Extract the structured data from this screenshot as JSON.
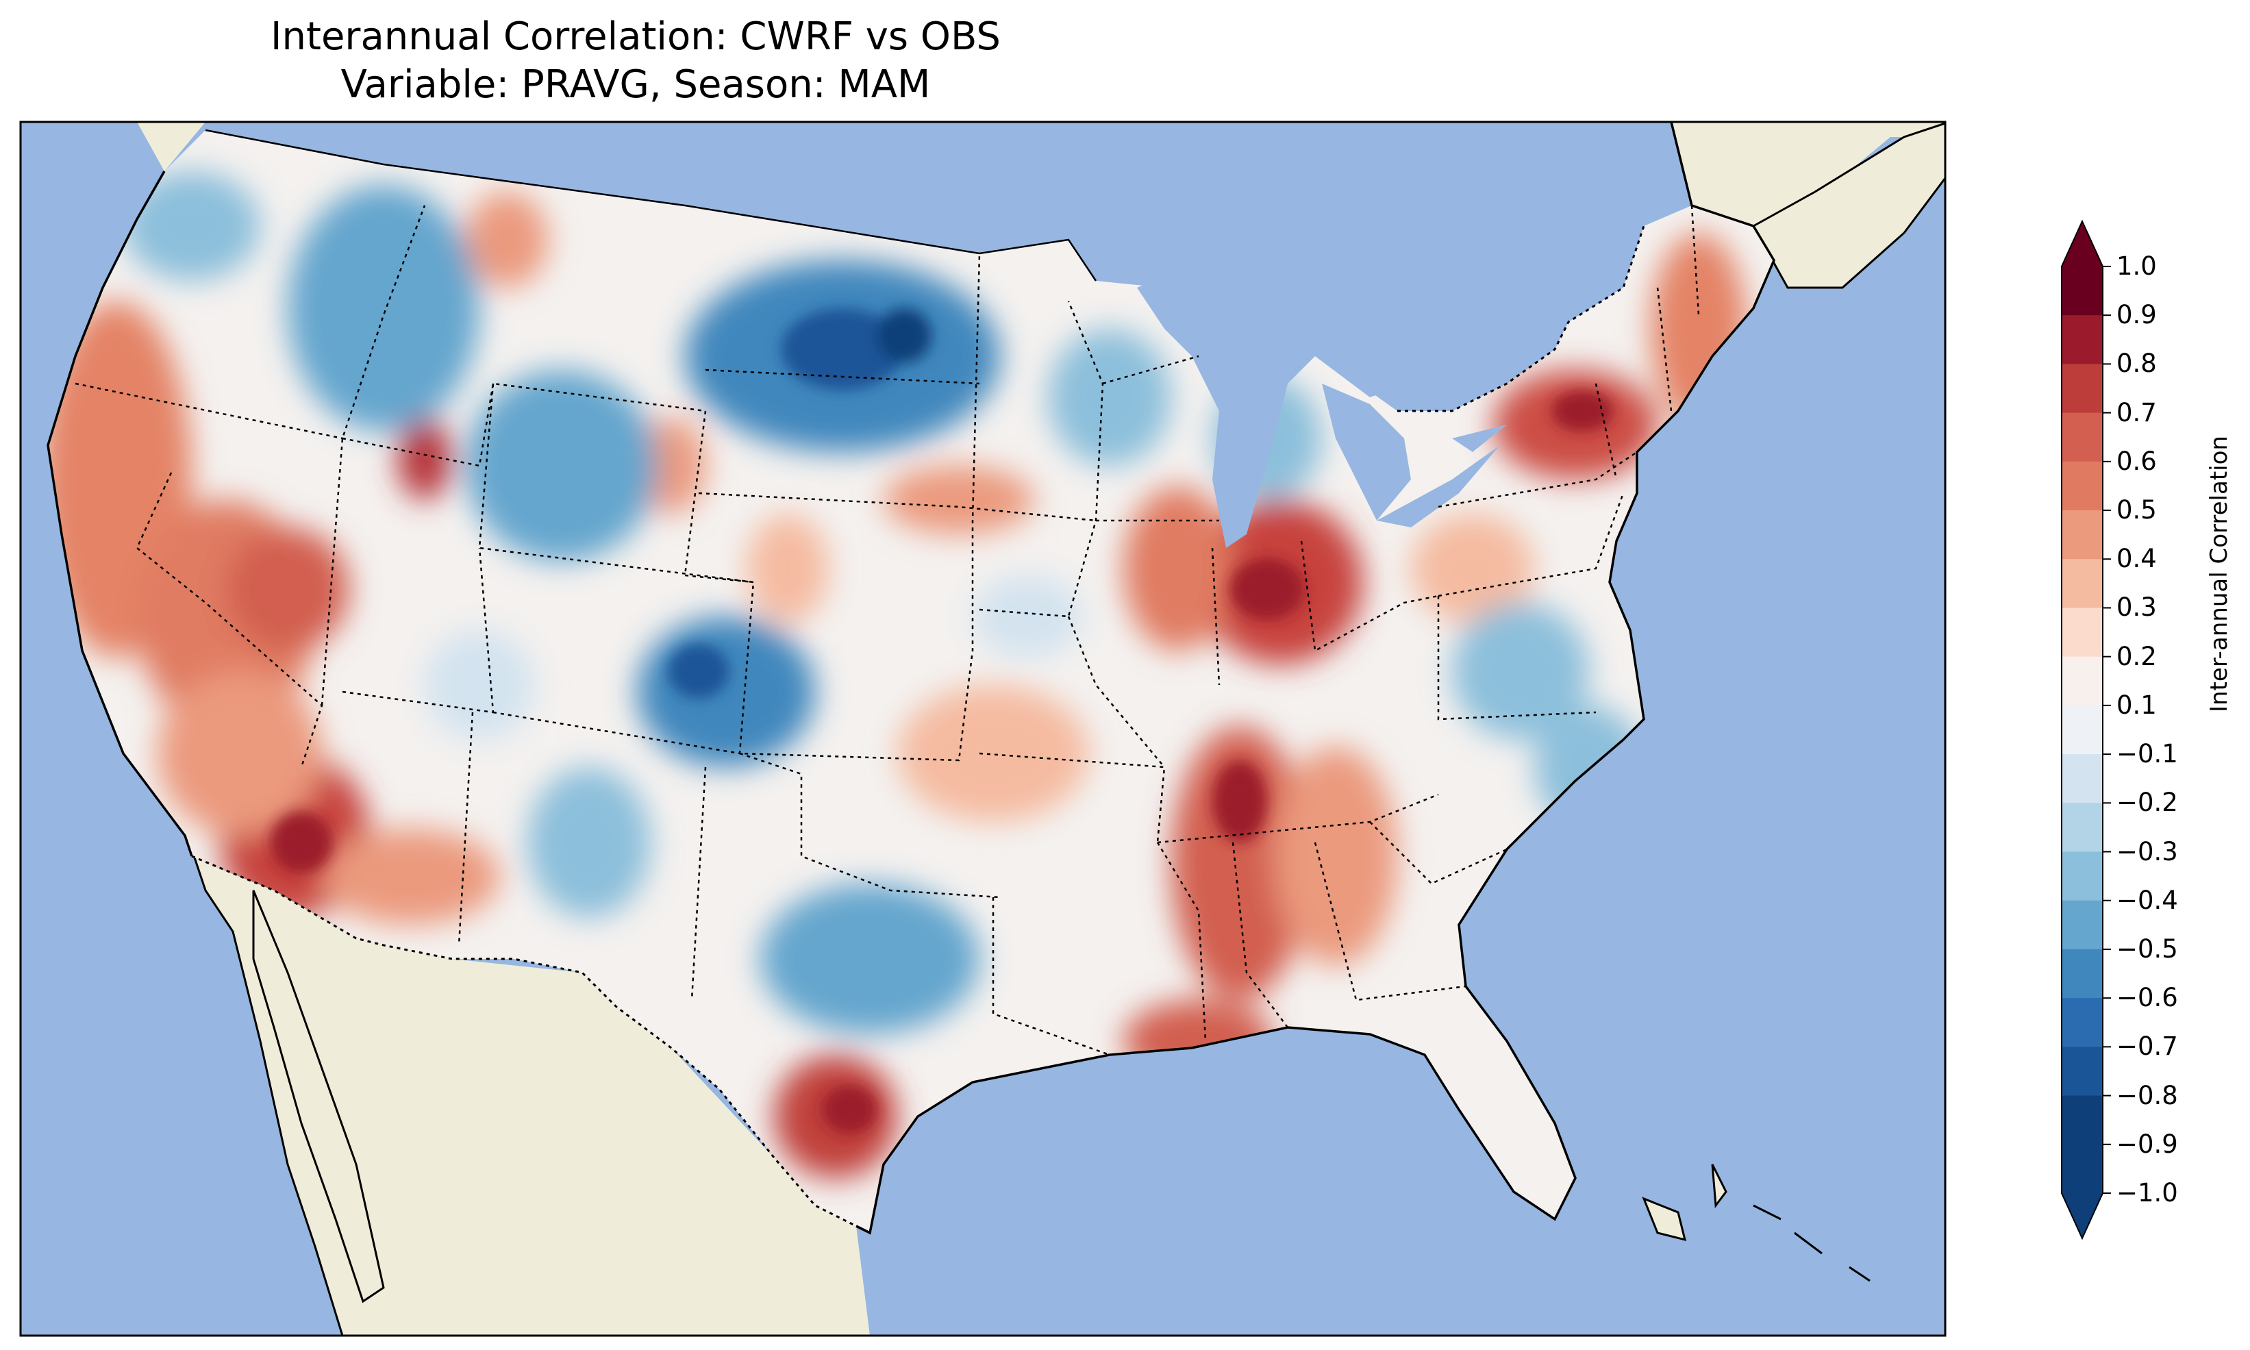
{
  "title_line1": "Interannual Correlation: CWRF vs OBS",
  "title_line2": "Variable: PRAVG, Season: MAM",
  "colorbar": {
    "label": "Inter-annual Correlation",
    "ticks": [
      "1.0",
      "0.9",
      "0.8",
      "0.7",
      "0.6",
      "0.5",
      "0.4",
      "0.3",
      "0.2",
      "0.1",
      "−0.1",
      "−0.2",
      "−0.3",
      "−0.4",
      "−0.5",
      "−0.6",
      "−0.7",
      "−0.8",
      "−0.9",
      "−1.0"
    ],
    "colors_top_to_bottom": [
      "#6a0020",
      "#9b1a2b",
      "#bd3d3a",
      "#d25f4f",
      "#e07b62",
      "#eb9a7e",
      "#f5bba1",
      "#fbdccc",
      "#f7f0ec",
      "#eef2f6",
      "#d3e3ef",
      "#b3d3e6",
      "#8cbfdb",
      "#65a6ce",
      "#3f87bd",
      "#2a6caf",
      "#1a5598",
      "#0f3f78"
    ],
    "extend_top_color": "#6a0020",
    "extend_bottom_color": "#0f3f78"
  },
  "map_colors": {
    "ocean": "#97b6e1",
    "land_outside": "#efedd9",
    "coast": "#000000"
  }
}
